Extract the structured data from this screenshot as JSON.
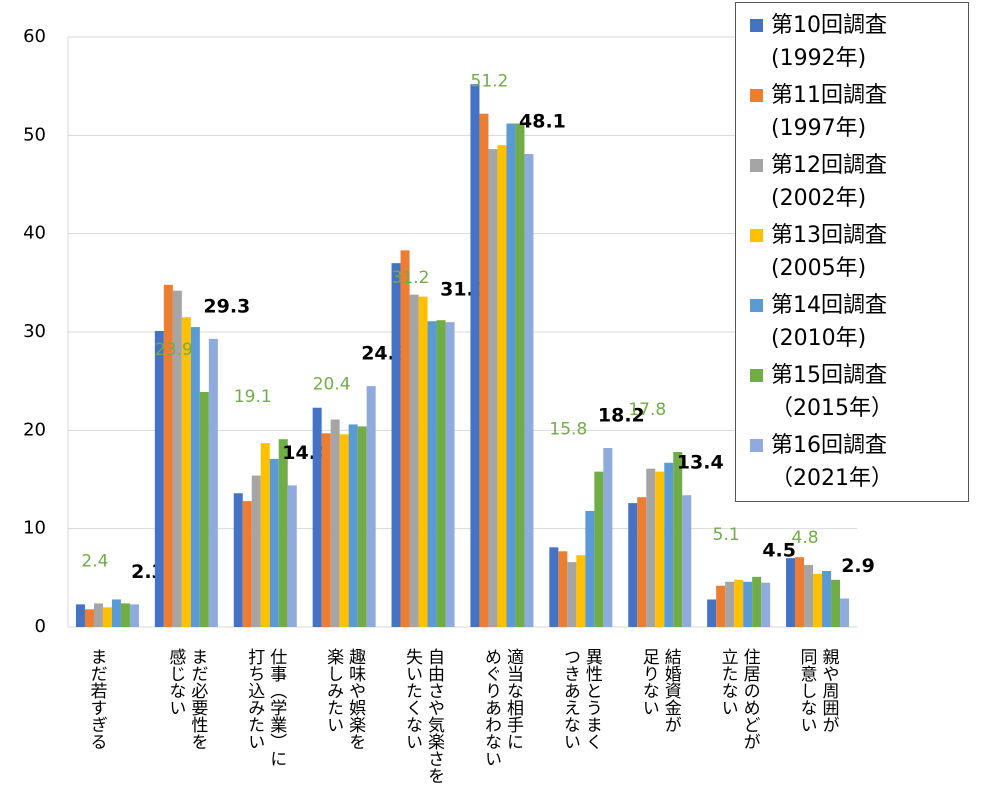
{
  "chart_data": {
    "type": "bar",
    "categories": [
      "まだ若すぎる",
      "まだ必要性を\n感じない",
      "仕事（学業）に\n打ち込みたい",
      "趣味や娯楽を\n楽しみたい",
      "自由さや気楽さを\n失いたくない",
      "適当な相手に\nめぐりあわない",
      "異性とうまく\nつきあえない",
      "結婚資金が\n足りない",
      "住居のめどが\n立たない",
      "親や周囲が\n同意しない"
    ],
    "series": [
      {
        "name": "第10回調査\n(1992年)",
        "color": "#4472c4",
        "values": [
          2.3,
          30.1,
          13.6,
          22.3,
          37.0,
          55.2,
          8.1,
          12.6,
          2.8,
          7.0
        ]
      },
      {
        "name": "第11回調査\n(1997年)",
        "color": "#ed7d31",
        "values": [
          1.8,
          34.8,
          12.8,
          19.7,
          38.3,
          52.2,
          7.7,
          13.2,
          4.2,
          7.1
        ]
      },
      {
        "name": "第12回調査\n(2002年)",
        "color": "#a5a5a5",
        "values": [
          2.4,
          34.2,
          15.4,
          21.1,
          33.8,
          48.6,
          6.6,
          16.1,
          4.6,
          6.3
        ]
      },
      {
        "name": "第13回調査\n(2005年)",
        "color": "#ffc000",
        "values": [
          2.0,
          31.5,
          18.7,
          19.6,
          33.6,
          49.0,
          7.3,
          15.8,
          4.8,
          5.4
        ]
      },
      {
        "name": "第14回調査\n(2010年)",
        "color": "#5b9bd5",
        "values": [
          2.8,
          30.5,
          17.1,
          20.6,
          31.1,
          51.2,
          11.8,
          16.7,
          4.6,
          5.7
        ]
      },
      {
        "name": "第15回調査\n（2015年）",
        "color": "#70ad47",
        "values": [
          2.4,
          23.9,
          19.1,
          20.4,
          31.2,
          51.2,
          15.8,
          17.8,
          5.1,
          4.8
        ],
        "value_labels": [
          "2.4",
          "23.9",
          "19.1",
          "20.4",
          "31.2",
          "51.2",
          "15.8",
          "17.8",
          "5.1",
          "4.8"
        ]
      },
      {
        "name": "第16回調査\n（2021年）",
        "color": "#8faadc",
        "values": [
          2.3,
          29.3,
          14.4,
          24.5,
          31.0,
          48.1,
          18.2,
          13.4,
          4.5,
          2.9
        ],
        "value_labels": [
          "2.3",
          "29.3",
          "14.4",
          "24.5",
          "31.0",
          "48.1",
          "18.2",
          "13.4",
          "4.5",
          "2.9"
        ]
      }
    ],
    "ylim": [
      0,
      60
    ],
    "yticks": [
      0,
      10,
      20,
      30,
      40,
      50,
      60
    ],
    "grid": true
  }
}
